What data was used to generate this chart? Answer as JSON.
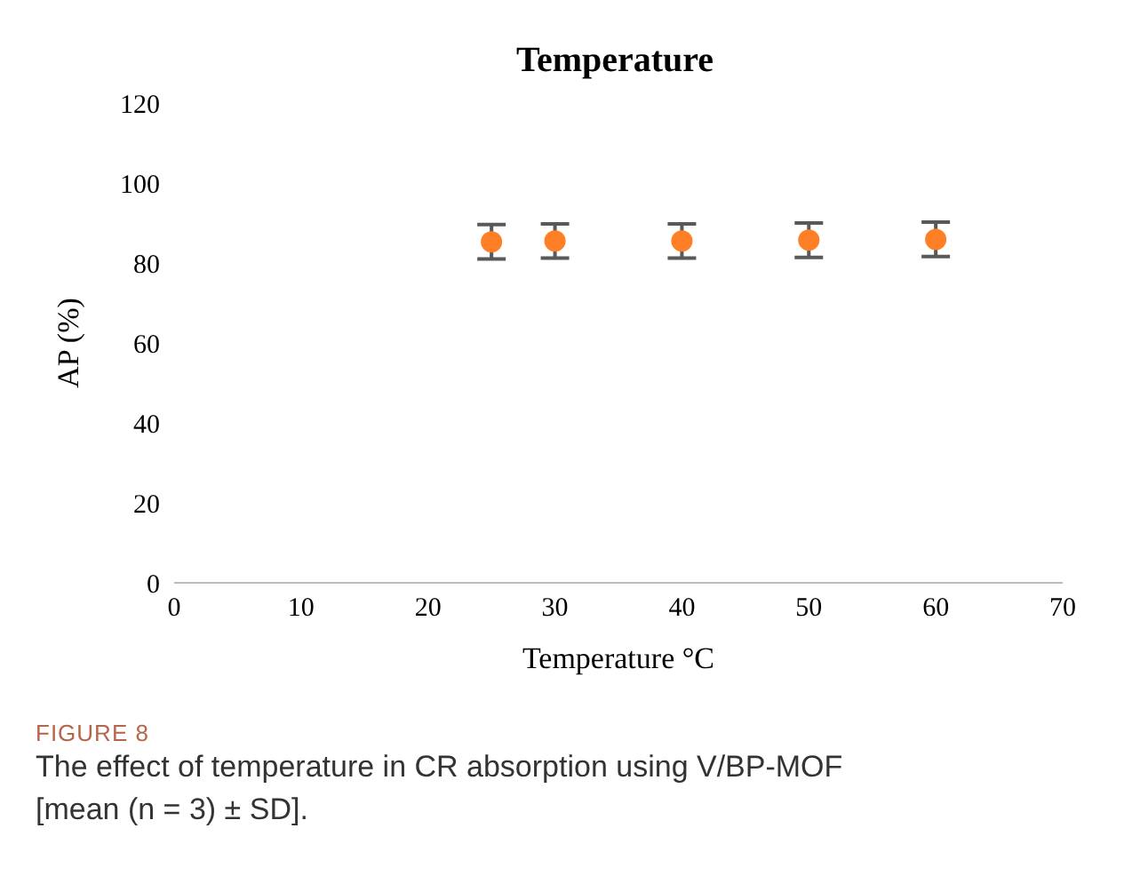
{
  "chart_data": {
    "type": "scatter",
    "title": "Temperature",
    "xlabel": "Temperature °C",
    "ylabel": "AP  (%)",
    "x": [
      25,
      30,
      40,
      50,
      60
    ],
    "series": [
      {
        "color": "#ff7f27",
        "values": [
          85.3,
          85.5,
          85.5,
          85.7,
          85.9
        ],
        "errors": [
          4.3,
          4.3,
          4.3,
          4.3,
          4.3
        ]
      }
    ],
    "xlim": [
      0,
      70
    ],
    "xticks": [
      0,
      10,
      20,
      30,
      40,
      50,
      60,
      70
    ],
    "ylim": [
      0,
      120
    ],
    "yticks": [
      0,
      20,
      40,
      60,
      80,
      100,
      120
    ],
    "grid": false,
    "legend": false,
    "marker": "circle",
    "annotations": [
      "FIGURE 8",
      "The effect of temperature in CR absorption using V/BP-MOF [mean (n = 3) ± SD]."
    ]
  }
}
